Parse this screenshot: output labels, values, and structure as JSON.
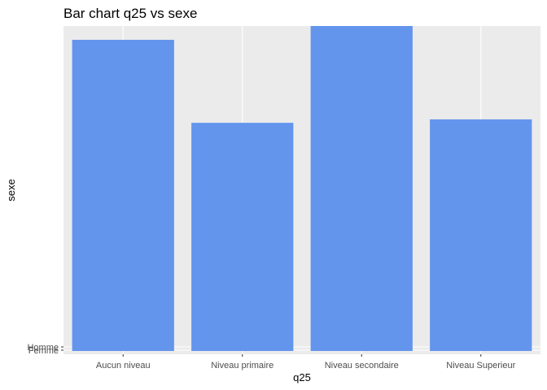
{
  "chart_data": {
    "type": "bar",
    "title": "Bar chart q25 vs sexe",
    "xlabel": "q25",
    "ylabel": "sexe",
    "categories": [
      "Aucun niveau",
      "Niveau primaire",
      "Niveau secondaire",
      "Niveau Superieur"
    ],
    "values": [
      0.9,
      0.66,
      0.94,
      0.67
    ],
    "y_tick_labels": [
      "Femme",
      "Homme"
    ],
    "bar_color": "#6495ED",
    "panel_background": "#EBEBEB",
    "grid": true,
    "legend": "none"
  }
}
